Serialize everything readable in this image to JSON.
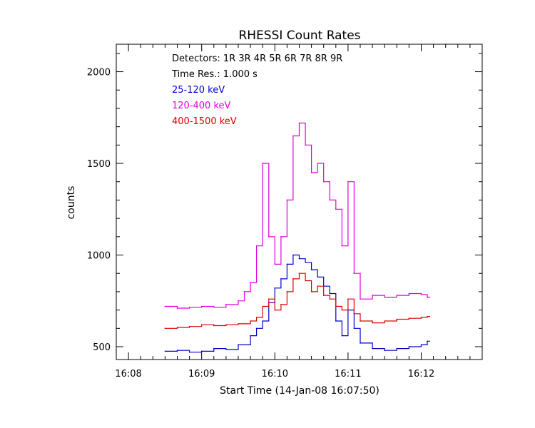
{
  "chart_data": {
    "type": "line",
    "title": "RHESSI Count Rates",
    "xlabel": "Start Time (14-Jan-08 16:07:50)",
    "ylabel": "counts",
    "xlim": [
      "16:07:50",
      "16:12:50"
    ],
    "ylim": [
      430,
      2150
    ],
    "x_ticks": [
      "16:08",
      "16:09",
      "16:10",
      "16:11",
      "16:12"
    ],
    "y_ticks": [
      500,
      1000,
      1500,
      2000
    ],
    "legend": {
      "placement": "top-left",
      "detectors_label": "Detectors:  1R 3R 4R 5R 6R 7R 8R 9R",
      "time_res_label": "Time Res.: 1.000 s"
    },
    "series": [
      {
        "name": "25-120 keV",
        "color": "#0000cc",
        "points": [
          [
            "16:08:30",
            475
          ],
          [
            "16:08:40",
            480
          ],
          [
            "16:08:50",
            470
          ],
          [
            "16:09:00",
            475
          ],
          [
            "16:09:10",
            490
          ],
          [
            "16:09:20",
            485
          ],
          [
            "16:09:30",
            510
          ],
          [
            "16:09:40",
            560
          ],
          [
            "16:09:45",
            600
          ],
          [
            "16:09:50",
            640
          ],
          [
            "16:09:55",
            740
          ],
          [
            "16:10:00",
            820
          ],
          [
            "16:10:05",
            870
          ],
          [
            "16:10:10",
            950
          ],
          [
            "16:10:15",
            1000
          ],
          [
            "16:10:20",
            980
          ],
          [
            "16:10:25",
            960
          ],
          [
            "16:10:30",
            920
          ],
          [
            "16:10:35",
            880
          ],
          [
            "16:10:40",
            830
          ],
          [
            "16:10:45",
            790
          ],
          [
            "16:10:50",
            640
          ],
          [
            "16:10:55",
            560
          ],
          [
            "16:11:00",
            700
          ],
          [
            "16:11:05",
            600
          ],
          [
            "16:11:10",
            520
          ],
          [
            "16:11:20",
            490
          ],
          [
            "16:11:30",
            480
          ],
          [
            "16:11:40",
            490
          ],
          [
            "16:11:50",
            500
          ],
          [
            "16:12:00",
            510
          ],
          [
            "16:12:05",
            530
          ]
        ]
      },
      {
        "name": "120-400 keV",
        "color": "#dd00dd",
        "points": [
          [
            "16:08:30",
            720
          ],
          [
            "16:08:40",
            710
          ],
          [
            "16:08:50",
            715
          ],
          [
            "16:09:00",
            720
          ],
          [
            "16:09:10",
            715
          ],
          [
            "16:09:20",
            730
          ],
          [
            "16:09:30",
            750
          ],
          [
            "16:09:35",
            800
          ],
          [
            "16:09:40",
            850
          ],
          [
            "16:09:45",
            1050
          ],
          [
            "16:09:50",
            1500
          ],
          [
            "16:09:55",
            1100
          ],
          [
            "16:10:00",
            950
          ],
          [
            "16:10:05",
            1100
          ],
          [
            "16:10:10",
            1300
          ],
          [
            "16:10:15",
            1650
          ],
          [
            "16:10:20",
            1720
          ],
          [
            "16:10:25",
            1600
          ],
          [
            "16:10:30",
            1450
          ],
          [
            "16:10:35",
            1500
          ],
          [
            "16:10:40",
            1400
          ],
          [
            "16:10:45",
            1300
          ],
          [
            "16:10:50",
            1250
          ],
          [
            "16:10:55",
            1050
          ],
          [
            "16:11:00",
            1400
          ],
          [
            "16:11:05",
            900
          ],
          [
            "16:11:10",
            760
          ],
          [
            "16:11:20",
            780
          ],
          [
            "16:11:30",
            770
          ],
          [
            "16:11:40",
            780
          ],
          [
            "16:11:50",
            790
          ],
          [
            "16:12:00",
            785
          ],
          [
            "16:12:05",
            770
          ]
        ]
      },
      {
        "name": "400-1500 keV",
        "color": "#dd0000",
        "points": [
          [
            "16:08:30",
            600
          ],
          [
            "16:08:40",
            605
          ],
          [
            "16:08:50",
            610
          ],
          [
            "16:09:00",
            620
          ],
          [
            "16:09:10",
            615
          ],
          [
            "16:09:20",
            620
          ],
          [
            "16:09:30",
            625
          ],
          [
            "16:09:40",
            640
          ],
          [
            "16:09:45",
            660
          ],
          [
            "16:09:50",
            720
          ],
          [
            "16:09:55",
            760
          ],
          [
            "16:10:00",
            700
          ],
          [
            "16:10:05",
            730
          ],
          [
            "16:10:10",
            800
          ],
          [
            "16:10:15",
            870
          ],
          [
            "16:10:20",
            900
          ],
          [
            "16:10:25",
            860
          ],
          [
            "16:10:30",
            800
          ],
          [
            "16:10:35",
            830
          ],
          [
            "16:10:40",
            780
          ],
          [
            "16:10:45",
            760
          ],
          [
            "16:10:50",
            720
          ],
          [
            "16:10:55",
            700
          ],
          [
            "16:11:00",
            760
          ],
          [
            "16:11:05",
            680
          ],
          [
            "16:11:10",
            640
          ],
          [
            "16:11:20",
            630
          ],
          [
            "16:11:30",
            640
          ],
          [
            "16:11:40",
            650
          ],
          [
            "16:11:50",
            655
          ],
          [
            "16:12:00",
            660
          ],
          [
            "16:12:05",
            665
          ]
        ]
      }
    ]
  }
}
